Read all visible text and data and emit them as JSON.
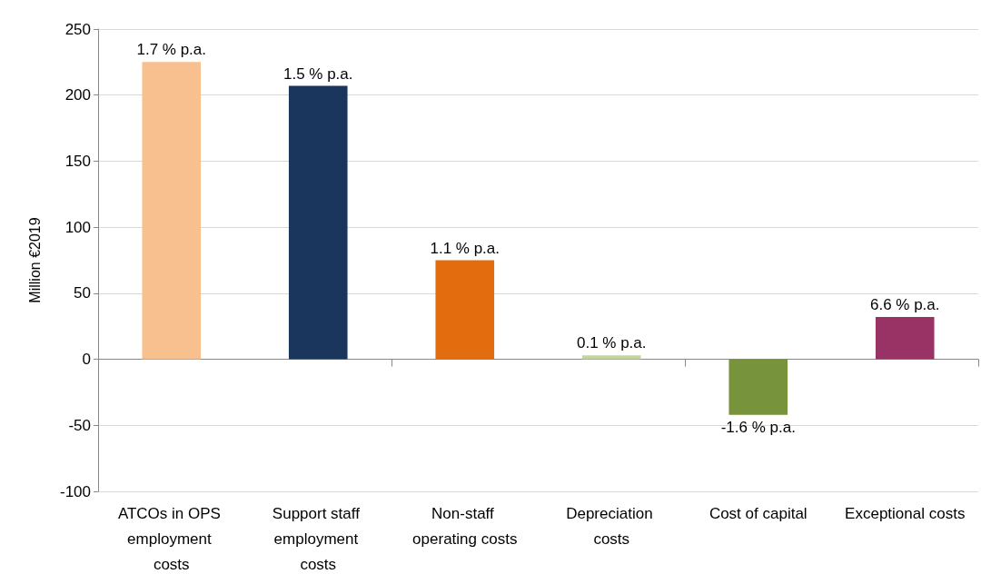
{
  "chart_data": {
    "type": "bar",
    "ylabel": "Million €2019",
    "categories": [
      "ATCOs in OPS employment costs",
      "Support staff employment costs",
      "Non-staff operating costs",
      "Depreciation costs",
      "Cost of capital",
      "Exceptional costs"
    ],
    "values": [
      225,
      207,
      75,
      3,
      -42,
      32
    ],
    "colors": [
      "#f8bf8f",
      "#1a365d",
      "#e36c0e",
      "#c3d69b",
      "#77933c",
      "#993366"
    ],
    "annotations": [
      {
        "text": "1.7 % p.a.",
        "x": "ATCOs in OPS employment costs",
        "y": 225
      },
      {
        "text": "1.5 % p.a.",
        "x": "Support staff employment costs",
        "y": 207
      },
      {
        "text": "1.1 % p.a.",
        "x": "Non-staff operating costs",
        "y": 75
      },
      {
        "text": "0.1 % p.a.",
        "x": "Depreciation costs",
        "y": 3
      },
      {
        "text": "-1.6 % p.a.",
        "x": "Cost of capital",
        "y": -42
      },
      {
        "text": "6.6 % p.a.",
        "x": "Exceptional costs",
        "y": 32
      }
    ],
    "ylim": [
      -100,
      250
    ],
    "yticks": [
      -100,
      -50,
      0,
      50,
      100,
      150,
      200,
      250
    ],
    "grid": "y"
  }
}
